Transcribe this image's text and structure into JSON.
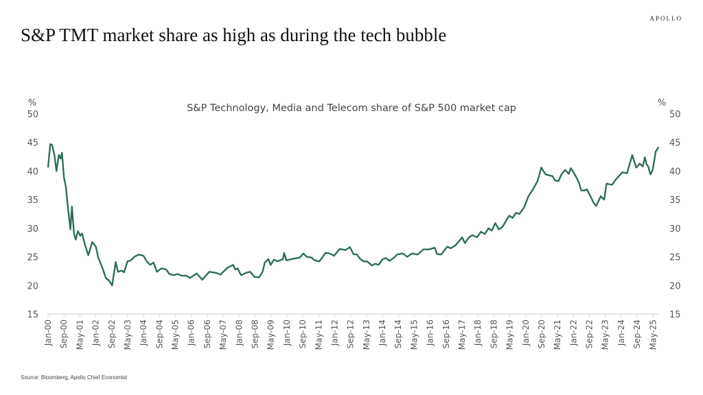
{
  "header": {
    "title": "S&P TMT market share as high as during the tech bubble",
    "brand": "APOLLO"
  },
  "footer": {
    "source": "Source: Bloomberg, Apollo Chief Economist"
  },
  "colors": {
    "line": "#2e6e55",
    "axis": "#d9d9d9",
    "text": "#555555"
  },
  "chart_data": {
    "type": "line",
    "title": "S&P Technology, Media and Telecom share of S&P 500 market cap",
    "ylabel_left": "%",
    "ylabel_right": "%",
    "ylim": [
      15,
      50
    ],
    "yticks": [
      15,
      20,
      25,
      30,
      35,
      40,
      45,
      50
    ],
    "x_unit": "months since Jan-2000",
    "xlim": [
      0,
      307
    ],
    "xtick_labels": [
      "Jan-00",
      "Sep-00",
      "May-01",
      "Jan-02",
      "Sep-02",
      "May-03",
      "Jan-04",
      "Sep-04",
      "May-05",
      "Jan-06",
      "Sep-06",
      "May-07",
      "Jan-08",
      "Sep-08",
      "May-09",
      "Jan-10",
      "Sep-10",
      "May-11",
      "Jan-12",
      "Sep-12",
      "May-13",
      "Jan-14",
      "Sep-14",
      "May-15",
      "Jan-16",
      "Sep-16",
      "May-17",
      "Jan-18",
      "Sep-18",
      "May-19",
      "Jan-20",
      "Sep-20",
      "May-21",
      "Jan-22",
      "Sep-22",
      "May-23",
      "Jan-24",
      "Sep-24",
      "May-25"
    ],
    "xtick_step_months": 8,
    "grid": false,
    "series": [
      {
        "name": "TMT share of S&P 500 market cap",
        "x": [
          0,
          1.1,
          2,
          3.2,
          4.2,
          5.4,
          6.3,
          7,
          8,
          8.9,
          10,
          11.2,
          12,
          13,
          13.9,
          15,
          16.2,
          17.1,
          18.5,
          20.2,
          22.2,
          24,
          25.3,
          27.4,
          29,
          30.8,
          32.2,
          34,
          35.1,
          37,
          38.2,
          39.9,
          41.6,
          43.3,
          45.6,
          47.9,
          49.6,
          51.3,
          53,
          54.7,
          57,
          59.3,
          61,
          63.3,
          65,
          67.3,
          69.6,
          71.3,
          74.7,
          77.5,
          81,
          84.4,
          86.7,
          90.1,
          93,
          94.1,
          95.2,
          97,
          99.4,
          101.5,
          103.8,
          106,
          107.8,
          108.9,
          110.7,
          111.8,
          113.5,
          115.2,
          118,
          118.6,
          119.8,
          123.7,
          126.6,
          128.3,
          130,
          132.3,
          134,
          136.3,
          138,
          139.4,
          141.4,
          143.7,
          146.6,
          149.4,
          151.7,
          153.4,
          155.2,
          156.9,
          158.6,
          160.3,
          162.7,
          164.4,
          166.1,
          167.9,
          169.6,
          171.6,
          173.6,
          175.4,
          178.2,
          180.5,
          182.8,
          185.7,
          188.5,
          191.4,
          194.3,
          195.4,
          197.5,
          200.6,
          202.3,
          204.6,
          208.1,
          209.4,
          211.5,
          213.2,
          215.5,
          217.5,
          219.5,
          221.3,
          223,
          224.7,
          226.5,
          228.2,
          231.7,
          233.4,
          235.1,
          236.8,
          239.1,
          241.4,
          243.7,
          246,
          247.8,
          250,
          253.5,
          254.6,
          256.4,
          258.1,
          259.8,
          261.6,
          262.7,
          265,
          266.7,
          267.9,
          269.6,
          270.7,
          272.5,
          274.2,
          275.4,
          277.7,
          279.4,
          280.6,
          283.4,
          285.2,
          288.6,
          290.9,
          293.5,
          295.5,
          297.3,
          298.8,
          299.9,
          300.7,
          301.5,
          302.7,
          303.8,
          305.3,
          306.8
        ],
        "y": [
          40.6,
          44.7,
          44.6,
          42.8,
          40,
          42.8,
          42.2,
          43.2,
          38.8,
          37.4,
          33.6,
          29.8,
          33.8,
          29.2,
          28,
          29.5,
          28.7,
          29.1,
          27.2,
          25.3,
          27.6,
          26.8,
          24.8,
          23,
          21.3,
          20.8,
          20,
          24.1,
          22.4,
          22.6,
          22.3,
          24.2,
          24.4,
          25,
          25.4,
          25.2,
          24.2,
          23.6,
          24,
          22.4,
          23,
          22.8,
          22,
          21.8,
          22,
          21.7,
          21.7,
          21.3,
          22.1,
          21,
          22.4,
          22.2,
          21.9,
          23.1,
          23.6,
          22.8,
          23,
          21.8,
          22.2,
          22.4,
          21.5,
          21.4,
          22.4,
          24,
          24.6,
          23.6,
          24.5,
          24.2,
          24.6,
          25.7,
          24.4,
          24.7,
          24.9,
          25.6,
          25,
          24.9,
          24.4,
          24.2,
          25,
          25.7,
          25.6,
          25.2,
          26.4,
          26.2,
          26.7,
          25.5,
          25.4,
          24.6,
          24.2,
          24.2,
          23.5,
          23.8,
          23.6,
          24.5,
          24.8,
          24.3,
          24.8,
          25.4,
          25.6,
          25,
          25.6,
          25.4,
          26.3,
          26.3,
          26.6,
          25.5,
          25.4,
          26.8,
          26.5,
          27,
          28.4,
          27.4,
          28.4,
          28.8,
          28.4,
          29.4,
          29,
          30,
          29.6,
          30.9,
          29.8,
          30.2,
          32.2,
          31.8,
          32.7,
          32.5,
          33.6,
          35.6,
          36.8,
          38.3,
          40.6,
          39.4,
          39.1,
          38.4,
          38.2,
          39.5,
          40.2,
          39.5,
          40.5,
          39.2,
          38,
          36.6,
          36.6,
          36.8,
          35.6,
          34.4,
          33.9,
          35.6,
          35,
          37.8,
          37.6,
          38.5,
          39.8,
          39.6,
          42.8,
          40.6,
          41.3,
          40.8,
          42.4,
          41.2,
          40.8,
          39.4,
          40.2,
          43.4,
          44.2
        ]
      }
    ]
  }
}
